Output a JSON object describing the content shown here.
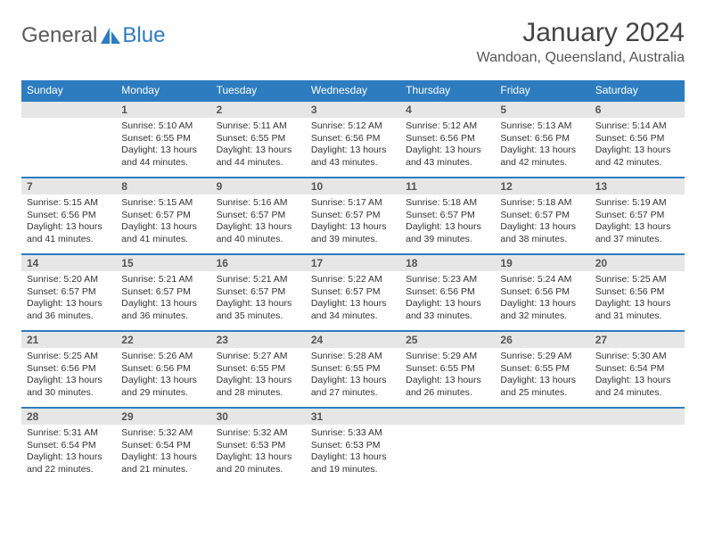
{
  "brand": {
    "text1": "General",
    "text2": "Blue"
  },
  "title": {
    "month": "January 2024",
    "location": "Wandoan, Queensland, Australia"
  },
  "colors": {
    "accent": "#2d7cc0",
    "daynum_bg": "#e6e6e6",
    "text": "#333333",
    "header_text": "#ffffff"
  },
  "weekdays": [
    "Sunday",
    "Monday",
    "Tuesday",
    "Wednesday",
    "Thursday",
    "Friday",
    "Saturday"
  ],
  "weeks": [
    [
      null,
      {
        "d": "1",
        "sr": "5:10 AM",
        "ss": "6:55 PM",
        "dl": "13 hours and 44 minutes."
      },
      {
        "d": "2",
        "sr": "5:11 AM",
        "ss": "6:55 PM",
        "dl": "13 hours and 44 minutes."
      },
      {
        "d": "3",
        "sr": "5:12 AM",
        "ss": "6:56 PM",
        "dl": "13 hours and 43 minutes."
      },
      {
        "d": "4",
        "sr": "5:12 AM",
        "ss": "6:56 PM",
        "dl": "13 hours and 43 minutes."
      },
      {
        "d": "5",
        "sr": "5:13 AM",
        "ss": "6:56 PM",
        "dl": "13 hours and 42 minutes."
      },
      {
        "d": "6",
        "sr": "5:14 AM",
        "ss": "6:56 PM",
        "dl": "13 hours and 42 minutes."
      }
    ],
    [
      {
        "d": "7",
        "sr": "5:15 AM",
        "ss": "6:56 PM",
        "dl": "13 hours and 41 minutes."
      },
      {
        "d": "8",
        "sr": "5:15 AM",
        "ss": "6:57 PM",
        "dl": "13 hours and 41 minutes."
      },
      {
        "d": "9",
        "sr": "5:16 AM",
        "ss": "6:57 PM",
        "dl": "13 hours and 40 minutes."
      },
      {
        "d": "10",
        "sr": "5:17 AM",
        "ss": "6:57 PM",
        "dl": "13 hours and 39 minutes."
      },
      {
        "d": "11",
        "sr": "5:18 AM",
        "ss": "6:57 PM",
        "dl": "13 hours and 39 minutes."
      },
      {
        "d": "12",
        "sr": "5:18 AM",
        "ss": "6:57 PM",
        "dl": "13 hours and 38 minutes."
      },
      {
        "d": "13",
        "sr": "5:19 AM",
        "ss": "6:57 PM",
        "dl": "13 hours and 37 minutes."
      }
    ],
    [
      {
        "d": "14",
        "sr": "5:20 AM",
        "ss": "6:57 PM",
        "dl": "13 hours and 36 minutes."
      },
      {
        "d": "15",
        "sr": "5:21 AM",
        "ss": "6:57 PM",
        "dl": "13 hours and 36 minutes."
      },
      {
        "d": "16",
        "sr": "5:21 AM",
        "ss": "6:57 PM",
        "dl": "13 hours and 35 minutes."
      },
      {
        "d": "17",
        "sr": "5:22 AM",
        "ss": "6:57 PM",
        "dl": "13 hours and 34 minutes."
      },
      {
        "d": "18",
        "sr": "5:23 AM",
        "ss": "6:56 PM",
        "dl": "13 hours and 33 minutes."
      },
      {
        "d": "19",
        "sr": "5:24 AM",
        "ss": "6:56 PM",
        "dl": "13 hours and 32 minutes."
      },
      {
        "d": "20",
        "sr": "5:25 AM",
        "ss": "6:56 PM",
        "dl": "13 hours and 31 minutes."
      }
    ],
    [
      {
        "d": "21",
        "sr": "5:25 AM",
        "ss": "6:56 PM",
        "dl": "13 hours and 30 minutes."
      },
      {
        "d": "22",
        "sr": "5:26 AM",
        "ss": "6:56 PM",
        "dl": "13 hours and 29 minutes."
      },
      {
        "d": "23",
        "sr": "5:27 AM",
        "ss": "6:55 PM",
        "dl": "13 hours and 28 minutes."
      },
      {
        "d": "24",
        "sr": "5:28 AM",
        "ss": "6:55 PM",
        "dl": "13 hours and 27 minutes."
      },
      {
        "d": "25",
        "sr": "5:29 AM",
        "ss": "6:55 PM",
        "dl": "13 hours and 26 minutes."
      },
      {
        "d": "26",
        "sr": "5:29 AM",
        "ss": "6:55 PM",
        "dl": "13 hours and 25 minutes."
      },
      {
        "d": "27",
        "sr": "5:30 AM",
        "ss": "6:54 PM",
        "dl": "13 hours and 24 minutes."
      }
    ],
    [
      {
        "d": "28",
        "sr": "5:31 AM",
        "ss": "6:54 PM",
        "dl": "13 hours and 22 minutes."
      },
      {
        "d": "29",
        "sr": "5:32 AM",
        "ss": "6:54 PM",
        "dl": "13 hours and 21 minutes."
      },
      {
        "d": "30",
        "sr": "5:32 AM",
        "ss": "6:53 PM",
        "dl": "13 hours and 20 minutes."
      },
      {
        "d": "31",
        "sr": "5:33 AM",
        "ss": "6:53 PM",
        "dl": "13 hours and 19 minutes."
      },
      null,
      null,
      null
    ]
  ],
  "labels": {
    "sunrise": "Sunrise:",
    "sunset": "Sunset:",
    "daylight": "Daylight:"
  }
}
